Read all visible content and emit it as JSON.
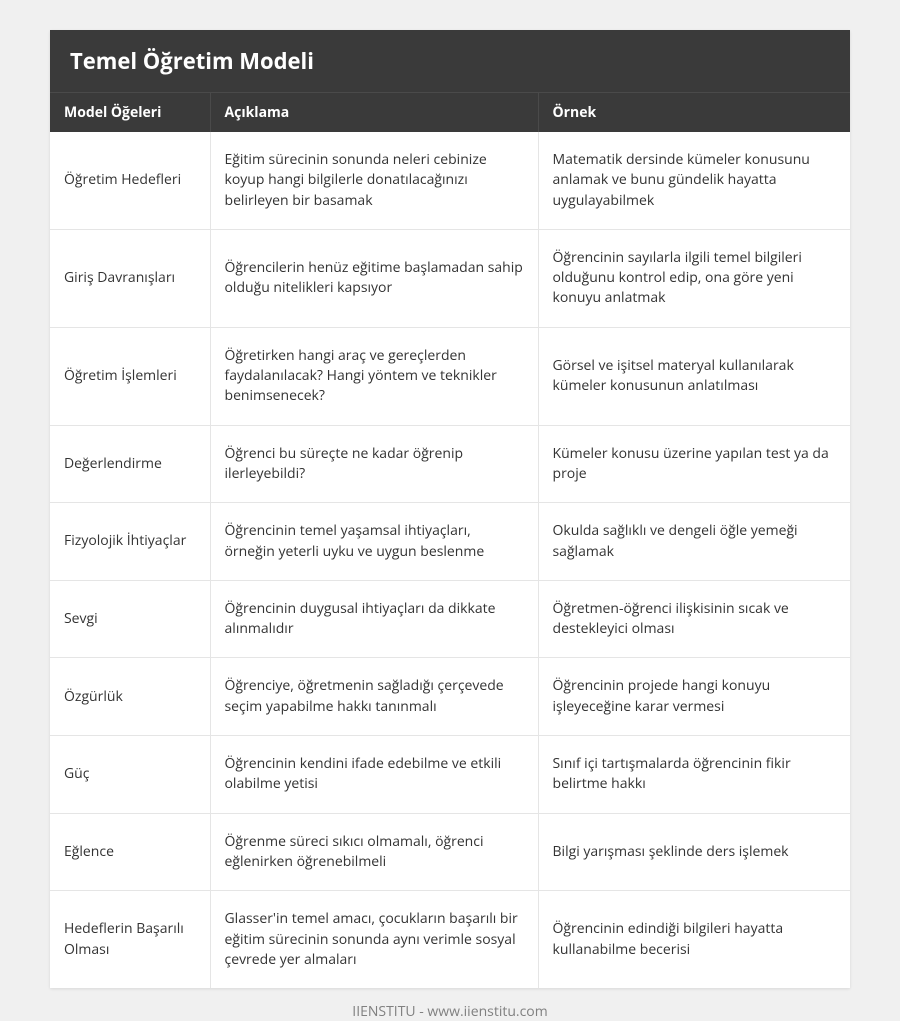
{
  "title": "Temel Öğretim Modeli",
  "columns": [
    "Model Öğeleri",
    "Açıklama",
    "Örnek"
  ],
  "rows": [
    {
      "c0": "Öğretim Hedefleri",
      "c1": "Eğitim sürecinin sonunda neleri cebinize koyup hangi bilgilerle donatılacağınızı belirleyen bir basamak",
      "c2": "Matematik dersinde kümeler konusunu anlamak ve bunu gündelik hayatta uygulayabilmek"
    },
    {
      "c0": "Giriş Davranışları",
      "c1": "Öğrencilerin henüz eğitime başlamadan sahip olduğu nitelikleri kapsıyor",
      "c2": "Öğrencinin sayılarla ilgili temel bilgileri olduğunu kontrol edip, ona göre yeni konuyu anlatmak"
    },
    {
      "c0": "Öğretim İşlemleri",
      "c1": "Öğretirken hangi araç ve gereçlerden faydalanılacak? Hangi yöntem ve teknikler benimsenecek?",
      "c2": "Görsel ve işitsel materyal kullanılarak kümeler konusunun anlatılması"
    },
    {
      "c0": "Değerlendirme",
      "c1": "Öğrenci bu süreçte ne kadar öğrenip ilerleyebildi?",
      "c2": "Kümeler konusu üzerine yapılan test ya da proje"
    },
    {
      "c0": "Fizyolojik İhtiyaçlar",
      "c1": "Öğrencinin temel yaşamsal ihtiyaçları, örneğin yeterli uyku ve uygun beslenme",
      "c2": "Okulda sağlıklı ve dengeli öğle yemeği sağlamak"
    },
    {
      "c0": "Sevgi",
      "c1": "Öğrencinin duygusal ihtiyaçları da dikkate alınmalıdır",
      "c2": "Öğretmen-öğrenci ilişkisinin sıcak ve destekleyici olması"
    },
    {
      "c0": "Özgürlük",
      "c1": "Öğrenciye, öğretmenin sağladığı çerçevede seçim yapabilme hakkı tanınmalı",
      "c2": "Öğrencinin projede hangi konuyu işleyeceğine karar vermesi"
    },
    {
      "c0": "Güç",
      "c1": "Öğrencinin kendini ifade edebilme ve etkili olabilme yetisi",
      "c2": "Sınıf içi tartışmalarda öğrencinin fikir belirtme hakkı"
    },
    {
      "c0": "Eğlence",
      "c1": "Öğrenme süreci sıkıcı olmamalı, öğrenci eğlenirken öğrenebilmeli",
      "c2": "Bilgi yarışması şeklinde ders işlemek"
    },
    {
      "c0": "Hedeflerin Başarılı Olması",
      "c1": "Glasser'in temel amacı, çocukların başarılı bir eğitim sürecinin sonunda aynı verimle sosyal çevrede yer almaları",
      "c2": "Öğrencinin edindiği bilgileri hayatta kullanabilme becerisi"
    }
  ],
  "footer": "IIENSTITU - www.iienstitu.com",
  "styling": {
    "type": "table",
    "page_background": "#f0f0f0",
    "header_background": "#3a3a3a",
    "header_text_color": "#ffffff",
    "cell_background": "#ffffff",
    "cell_text_color": "#333333",
    "border_color": "#e5e5e5",
    "header_border_color": "#4a4a4a",
    "footer_text_color": "#808080",
    "title_fontsize": 22,
    "header_fontsize": 14,
    "cell_fontsize": 14,
    "footer_fontsize": 14,
    "column_widths": [
      "20%",
      "41%",
      "39%"
    ]
  }
}
